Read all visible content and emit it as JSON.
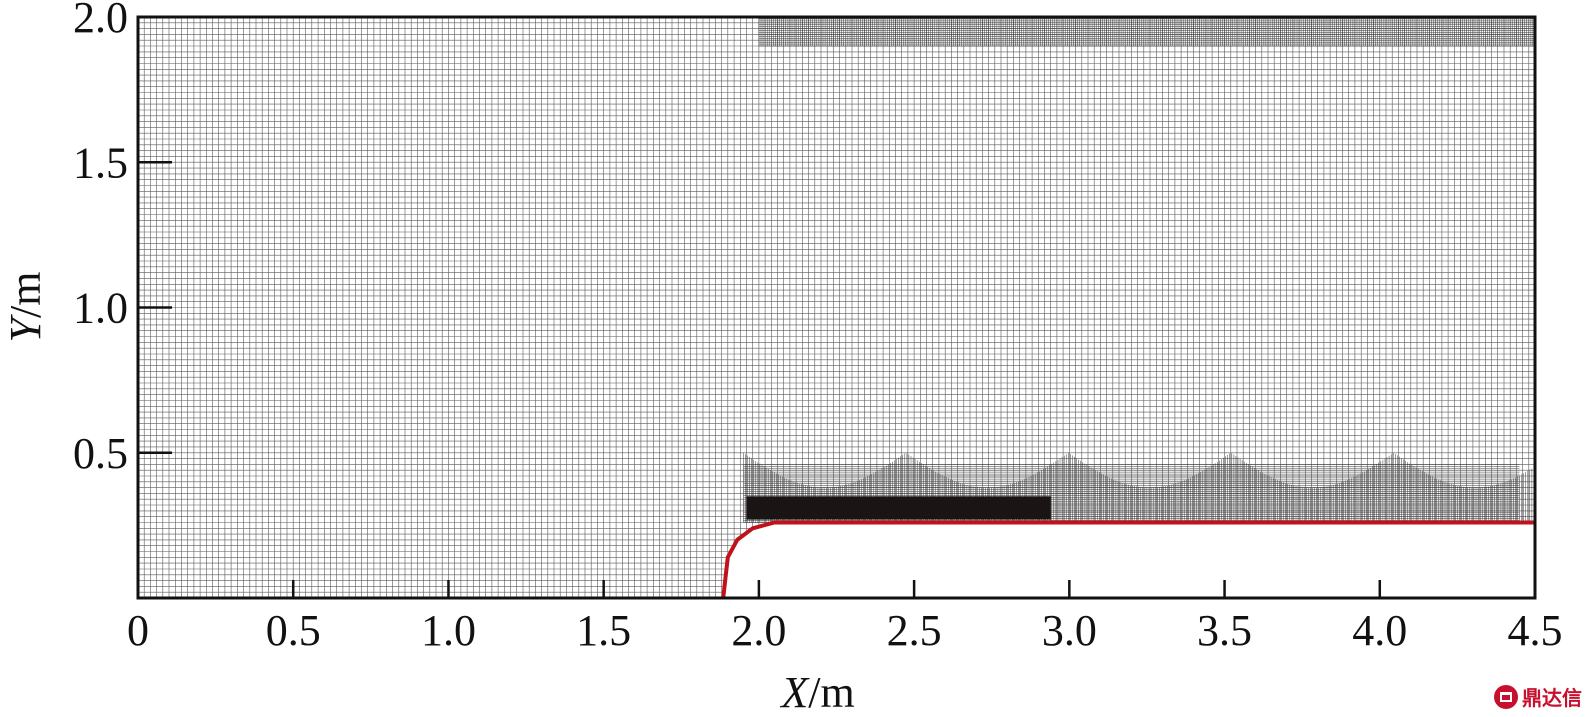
{
  "chart_data": {
    "type": "mesh",
    "x_axis": {
      "label_var": "X",
      "label_unit": "/m",
      "ticks": [
        0,
        0.5,
        1.0,
        1.5,
        2.0,
        2.5,
        3.0,
        3.5,
        4.0,
        4.5
      ],
      "tick_labels": [
        "0",
        "0.5",
        "1.0",
        "1.5",
        "2.0",
        "2.5",
        "3.0",
        "3.5",
        "4.0",
        "4.5"
      ],
      "range": [
        0,
        4.5
      ]
    },
    "y_axis": {
      "label_var": "Y",
      "label_unit": "/m",
      "ticks": [
        0.5,
        1.0,
        1.5,
        2.0
      ],
      "tick_labels": [
        "0.5",
        "1.0",
        "1.5",
        "2.0"
      ],
      "range": [
        0,
        2.0
      ]
    },
    "body_outline": {
      "color": "#c0121a",
      "points": [
        [
          1.885,
          0.0
        ],
        [
          1.9,
          0.14
        ],
        [
          1.93,
          0.2
        ],
        [
          1.98,
          0.24
        ],
        [
          2.05,
          0.26
        ],
        [
          4.5,
          0.26
        ]
      ]
    },
    "dark_block": {
      "x": [
        1.96,
        2.94
      ],
      "y": [
        0.27,
        0.35
      ],
      "color": "#1a1414"
    },
    "mesh": {
      "base_cell": 0.05,
      "refined_region": {
        "x": [
          1.95,
          4.5
        ],
        "y": [
          0.2,
          0.5
        ]
      },
      "top_refined_band": {
        "x": [
          2.0,
          4.5
        ],
        "y": [
          1.9,
          2.0
        ]
      }
    },
    "grid": false
  },
  "watermark": {
    "text": "鼎达信"
  }
}
